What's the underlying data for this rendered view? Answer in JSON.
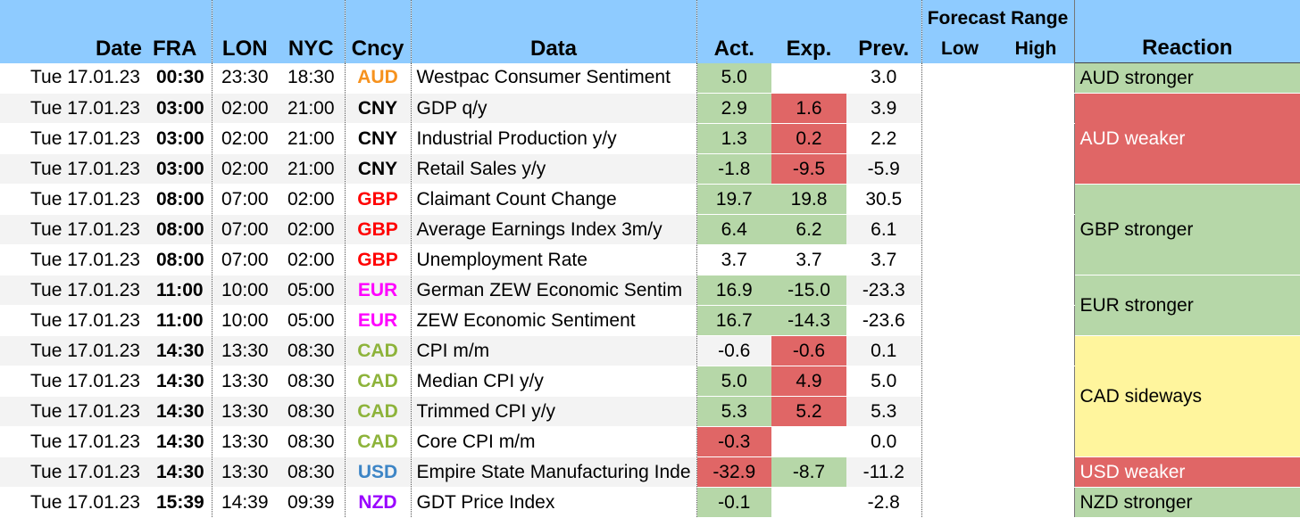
{
  "headers": {
    "date": "Date",
    "fra": "FRA",
    "lon": "LON",
    "nyc": "NYC",
    "cncy": "Cncy",
    "data": "Data",
    "act": "Act.",
    "exp": "Exp.",
    "prev": "Prev.",
    "forecast_range": "Forecast Range",
    "low": "Low",
    "high": "High",
    "reaction": "Reaction"
  },
  "colors": {
    "header_bg": "#8ECBFF",
    "green": "#B6D7A8",
    "red": "#E06666",
    "yellow": "#FFF59D",
    "AUD": "#F6921E",
    "CNY": "#000000",
    "GBP": "#FF0000",
    "EUR": "#FF00FF",
    "CAD": "#8DB33A",
    "USD": "#3D85C6",
    "NZD": "#9900FF"
  },
  "rows": [
    {
      "date": "Tue 17.01.23",
      "fra": "00:30",
      "lon": "23:30",
      "nyc": "18:30",
      "cncy": "AUD",
      "data": "Westpac Consumer Sentiment",
      "act": "5.0",
      "act_c": "green",
      "exp": "",
      "exp_c": "",
      "prev": "3.0"
    },
    {
      "date": "Tue 17.01.23",
      "fra": "03:00",
      "lon": "02:00",
      "nyc": "21:00",
      "cncy": "CNY",
      "data": "GDP q/y",
      "act": "2.9",
      "act_c": "green",
      "exp": "1.6",
      "exp_c": "red",
      "prev": "3.9"
    },
    {
      "date": "Tue 17.01.23",
      "fra": "03:00",
      "lon": "02:00",
      "nyc": "21:00",
      "cncy": "CNY",
      "data": "Industrial Production y/y",
      "act": "1.3",
      "act_c": "green",
      "exp": "0.2",
      "exp_c": "red",
      "prev": "2.2"
    },
    {
      "date": "Tue 17.01.23",
      "fra": "03:00",
      "lon": "02:00",
      "nyc": "21:00",
      "cncy": "CNY",
      "data": "Retail Sales y/y",
      "act": "-1.8",
      "act_c": "green",
      "exp": "-9.5",
      "exp_c": "red",
      "prev": "-5.9"
    },
    {
      "date": "Tue 17.01.23",
      "fra": "08:00",
      "lon": "07:00",
      "nyc": "02:00",
      "cncy": "GBP",
      "data": "Claimant Count Change",
      "act": "19.7",
      "act_c": "green",
      "exp": "19.8",
      "exp_c": "green",
      "prev": "30.5"
    },
    {
      "date": "Tue 17.01.23",
      "fra": "08:00",
      "lon": "07:00",
      "nyc": "02:00",
      "cncy": "GBP",
      "data": "Average Earnings Index 3m/y",
      "act": "6.4",
      "act_c": "green",
      "exp": "6.2",
      "exp_c": "green",
      "prev": "6.1"
    },
    {
      "date": "Tue 17.01.23",
      "fra": "08:00",
      "lon": "07:00",
      "nyc": "02:00",
      "cncy": "GBP",
      "data": "Unemployment Rate",
      "act": "3.7",
      "act_c": "",
      "exp": "3.7",
      "exp_c": "",
      "prev": "3.7"
    },
    {
      "date": "Tue 17.01.23",
      "fra": "11:00",
      "lon": "10:00",
      "nyc": "05:00",
      "cncy": "EUR",
      "data": "German ZEW Economic Sentim",
      "act": "16.9",
      "act_c": "green",
      "exp": "-15.0",
      "exp_c": "green",
      "prev": "-23.3"
    },
    {
      "date": "Tue 17.01.23",
      "fra": "11:00",
      "lon": "10:00",
      "nyc": "05:00",
      "cncy": "EUR",
      "data": "ZEW Economic Sentiment",
      "act": "16.7",
      "act_c": "green",
      "exp": "-14.3",
      "exp_c": "green",
      "prev": "-23.6"
    },
    {
      "date": "Tue 17.01.23",
      "fra": "14:30",
      "lon": "13:30",
      "nyc": "08:30",
      "cncy": "CAD",
      "data": "CPI m/m",
      "act": "-0.6",
      "act_c": "",
      "exp": "-0.6",
      "exp_c": "red",
      "prev": "0.1"
    },
    {
      "date": "Tue 17.01.23",
      "fra": "14:30",
      "lon": "13:30",
      "nyc": "08:30",
      "cncy": "CAD",
      "data": "Median CPI y/y",
      "act": "5.0",
      "act_c": "green",
      "exp": "4.9",
      "exp_c": "red",
      "prev": "5.0"
    },
    {
      "date": "Tue 17.01.23",
      "fra": "14:30",
      "lon": "13:30",
      "nyc": "08:30",
      "cncy": "CAD",
      "data": "Trimmed CPI y/y",
      "act": "5.3",
      "act_c": "green",
      "exp": "5.2",
      "exp_c": "red",
      "prev": "5.3"
    },
    {
      "date": "Tue 17.01.23",
      "fra": "14:30",
      "lon": "13:30",
      "nyc": "08:30",
      "cncy": "CAD",
      "data": "Core CPI m/m",
      "act": "-0.3",
      "act_c": "red",
      "exp": "",
      "exp_c": "",
      "prev": "0.0"
    },
    {
      "date": "Tue 17.01.23",
      "fra": "14:30",
      "lon": "13:30",
      "nyc": "08:30",
      "cncy": "USD",
      "data": "Empire State Manufacturing Inde",
      "act": "-32.9",
      "act_c": "red",
      "exp": "-8.7",
      "exp_c": "green",
      "prev": "-11.2"
    },
    {
      "date": "Tue 17.01.23",
      "fra": "15:39",
      "lon": "14:39",
      "nyc": "09:39",
      "cncy": "NZD",
      "data": "GDT Price Index",
      "act": "-0.1",
      "act_c": "green",
      "exp": "",
      "exp_c": "",
      "prev": "-2.8"
    }
  ],
  "reactions": [
    {
      "start": 0,
      "span": 1,
      "text": "AUD stronger",
      "color": "green"
    },
    {
      "start": 1,
      "span": 3,
      "text": "AUD weaker",
      "color": "red"
    },
    {
      "start": 4,
      "span": 3,
      "text": "GBP stronger",
      "color": "green"
    },
    {
      "start": 7,
      "span": 2,
      "text": "EUR stronger",
      "color": "green"
    },
    {
      "start": 9,
      "span": 4,
      "text": "CAD sideways",
      "color": "yellow"
    },
    {
      "start": 13,
      "span": 1,
      "text": "USD weaker",
      "color": "red"
    },
    {
      "start": 14,
      "span": 1,
      "text": "NZD stronger",
      "color": "green"
    }
  ]
}
